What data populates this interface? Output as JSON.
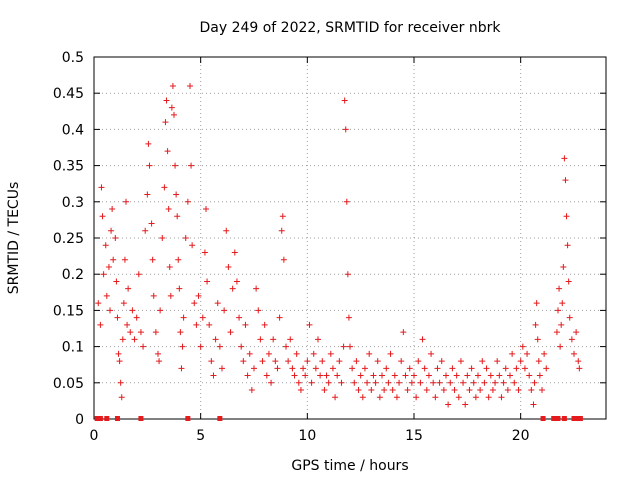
{
  "chart_data": {
    "type": "scatter",
    "title": "Day 249 of 2022, SRMTID for receiver nbrk",
    "xlabel": "GPS time / hours",
    "ylabel": "SRMTID / TECUs",
    "xlim": [
      0,
      24
    ],
    "ylim": [
      0,
      0.5
    ],
    "xticks": [
      0,
      5,
      10,
      15,
      20
    ],
    "yticks": [
      0,
      0.05,
      0.1,
      0.15,
      0.2,
      0.25,
      0.3,
      0.35,
      0.4,
      0.45,
      0.5
    ],
    "grid": true,
    "marker": "+",
    "color": "#e41a1c",
    "series": [
      {
        "name": "nbrk",
        "points": [
          [
            0.2,
            0.16
          ],
          [
            0.3,
            0.13
          ],
          [
            0.35,
            0.32
          ],
          [
            0.4,
            0.28
          ],
          [
            0.45,
            0.2
          ],
          [
            0.55,
            0.24
          ],
          [
            0.6,
            0.17
          ],
          [
            0.7,
            0.21
          ],
          [
            0.75,
            0.15
          ],
          [
            0.8,
            0.26
          ],
          [
            0.85,
            0.29
          ],
          [
            0.9,
            0.22
          ],
          [
            1.0,
            0.25
          ],
          [
            1.05,
            0.19
          ],
          [
            1.1,
            0.14
          ],
          [
            1.15,
            0.09
          ],
          [
            1.2,
            0.08
          ],
          [
            1.25,
            0.05
          ],
          [
            1.3,
            0.03
          ],
          [
            1.35,
            0.11
          ],
          [
            1.4,
            0.16
          ],
          [
            1.45,
            0.22
          ],
          [
            1.5,
            0.3
          ],
          [
            1.55,
            0.13
          ],
          [
            1.6,
            0.18
          ],
          [
            1.7,
            0.12
          ],
          [
            1.8,
            0.15
          ],
          [
            1.9,
            0.11
          ],
          [
            2.0,
            0.14
          ],
          [
            2.1,
            0.2
          ],
          [
            2.2,
            0.12
          ],
          [
            2.3,
            0.1
          ],
          [
            2.4,
            0.26
          ],
          [
            2.5,
            0.31
          ],
          [
            2.55,
            0.38
          ],
          [
            2.6,
            0.35
          ],
          [
            2.7,
            0.27
          ],
          [
            2.75,
            0.22
          ],
          [
            2.8,
            0.17
          ],
          [
            2.9,
            0.12
          ],
          [
            3.0,
            0.09
          ],
          [
            3.05,
            0.08
          ],
          [
            3.1,
            0.15
          ],
          [
            3.2,
            0.25
          ],
          [
            3.3,
            0.32
          ],
          [
            3.35,
            0.41
          ],
          [
            3.4,
            0.44
          ],
          [
            3.45,
            0.37
          ],
          [
            3.5,
            0.29
          ],
          [
            3.55,
            0.21
          ],
          [
            3.6,
            0.17
          ],
          [
            3.65,
            0.43
          ],
          [
            3.7,
            0.46
          ],
          [
            3.75,
            0.42
          ],
          [
            3.8,
            0.35
          ],
          [
            3.85,
            0.31
          ],
          [
            3.9,
            0.28
          ],
          [
            3.95,
            0.22
          ],
          [
            4.0,
            0.18
          ],
          [
            4.05,
            0.12
          ],
          [
            4.1,
            0.07
          ],
          [
            4.15,
            0.1
          ],
          [
            4.2,
            0.14
          ],
          [
            4.3,
            0.25
          ],
          [
            4.4,
            0.3
          ],
          [
            4.5,
            0.46
          ],
          [
            4.55,
            0.35
          ],
          [
            4.6,
            0.24
          ],
          [
            4.7,
            0.16
          ],
          [
            4.8,
            0.13
          ],
          [
            4.9,
            0.17
          ],
          [
            5.0,
            0.1
          ],
          [
            5.1,
            0.14
          ],
          [
            5.2,
            0.23
          ],
          [
            5.25,
            0.29
          ],
          [
            5.3,
            0.19
          ],
          [
            5.4,
            0.13
          ],
          [
            5.5,
            0.08
          ],
          [
            5.6,
            0.06
          ],
          [
            5.7,
            0.11
          ],
          [
            5.8,
            0.16
          ],
          [
            5.9,
            0.1
          ],
          [
            6.0,
            0.07
          ],
          [
            6.1,
            0.15
          ],
          [
            6.2,
            0.26
          ],
          [
            6.3,
            0.21
          ],
          [
            6.4,
            0.12
          ],
          [
            6.5,
            0.18
          ],
          [
            6.6,
            0.23
          ],
          [
            6.7,
            0.19
          ],
          [
            6.8,
            0.14
          ],
          [
            6.9,
            0.1
          ],
          [
            7.0,
            0.08
          ],
          [
            7.1,
            0.13
          ],
          [
            7.2,
            0.06
          ],
          [
            7.3,
            0.09
          ],
          [
            7.4,
            0.04
          ],
          [
            7.5,
            0.07
          ],
          [
            7.6,
            0.18
          ],
          [
            7.7,
            0.15
          ],
          [
            7.8,
            0.11
          ],
          [
            7.9,
            0.08
          ],
          [
            8.0,
            0.13
          ],
          [
            8.1,
            0.06
          ],
          [
            8.2,
            0.09
          ],
          [
            8.3,
            0.05
          ],
          [
            8.4,
            0.11
          ],
          [
            8.5,
            0.08
          ],
          [
            8.6,
            0.07
          ],
          [
            8.7,
            0.14
          ],
          [
            8.8,
            0.26
          ],
          [
            8.85,
            0.28
          ],
          [
            8.9,
            0.22
          ],
          [
            9.0,
            0.1
          ],
          [
            9.1,
            0.08
          ],
          [
            9.2,
            0.11
          ],
          [
            9.3,
            0.07
          ],
          [
            9.4,
            0.06
          ],
          [
            9.5,
            0.09
          ],
          [
            9.6,
            0.05
          ],
          [
            9.7,
            0.04
          ],
          [
            9.8,
            0.07
          ],
          [
            9.9,
            0.06
          ],
          [
            10.0,
            0.08
          ],
          [
            10.1,
            0.13
          ],
          [
            10.2,
            0.05
          ],
          [
            10.3,
            0.09
          ],
          [
            10.4,
            0.07
          ],
          [
            10.5,
            0.11
          ],
          [
            10.6,
            0.06
          ],
          [
            10.7,
            0.08
          ],
          [
            10.8,
            0.04
          ],
          [
            10.9,
            0.06
          ],
          [
            11.0,
            0.05
          ],
          [
            11.1,
            0.09
          ],
          [
            11.2,
            0.07
          ],
          [
            11.3,
            0.03
          ],
          [
            11.4,
            0.06
          ],
          [
            11.5,
            0.08
          ],
          [
            11.6,
            0.05
          ],
          [
            11.7,
            0.1
          ],
          [
            11.75,
            0.44
          ],
          [
            11.8,
            0.4
          ],
          [
            11.85,
            0.3
          ],
          [
            11.9,
            0.2
          ],
          [
            11.95,
            0.14
          ],
          [
            12.0,
            0.1
          ],
          [
            12.1,
            0.07
          ],
          [
            12.2,
            0.05
          ],
          [
            12.3,
            0.08
          ],
          [
            12.4,
            0.04
          ],
          [
            12.5,
            0.06
          ],
          [
            12.6,
            0.03
          ],
          [
            12.7,
            0.07
          ],
          [
            12.8,
            0.05
          ],
          [
            12.9,
            0.09
          ],
          [
            13.0,
            0.04
          ],
          [
            13.1,
            0.06
          ],
          [
            13.2,
            0.05
          ],
          [
            13.3,
            0.08
          ],
          [
            13.4,
            0.03
          ],
          [
            13.5,
            0.06
          ],
          [
            13.6,
            0.04
          ],
          [
            13.7,
            0.07
          ],
          [
            13.8,
            0.05
          ],
          [
            13.9,
            0.09
          ],
          [
            14.0,
            0.04
          ],
          [
            14.1,
            0.06
          ],
          [
            14.2,
            0.03
          ],
          [
            14.3,
            0.05
          ],
          [
            14.4,
            0.08
          ],
          [
            14.5,
            0.12
          ],
          [
            14.6,
            0.06
          ],
          [
            14.7,
            0.04
          ],
          [
            14.8,
            0.07
          ],
          [
            14.9,
            0.05
          ],
          [
            15.0,
            0.06
          ],
          [
            15.1,
            0.03
          ],
          [
            15.2,
            0.08
          ],
          [
            15.3,
            0.05
          ],
          [
            15.4,
            0.11
          ],
          [
            15.5,
            0.07
          ],
          [
            15.6,
            0.04
          ],
          [
            15.7,
            0.06
          ],
          [
            15.8,
            0.09
          ],
          [
            15.9,
            0.05
          ],
          [
            16.0,
            0.03
          ],
          [
            16.1,
            0.07
          ],
          [
            16.2,
            0.05
          ],
          [
            16.3,
            0.08
          ],
          [
            16.4,
            0.04
          ],
          [
            16.5,
            0.06
          ],
          [
            16.6,
            0.02
          ],
          [
            16.7,
            0.05
          ],
          [
            16.8,
            0.07
          ],
          [
            16.9,
            0.04
          ],
          [
            17.0,
            0.06
          ],
          [
            17.1,
            0.03
          ],
          [
            17.2,
            0.08
          ],
          [
            17.3,
            0.05
          ],
          [
            17.4,
            0.02
          ],
          [
            17.5,
            0.06
          ],
          [
            17.6,
            0.04
          ],
          [
            17.7,
            0.07
          ],
          [
            17.8,
            0.05
          ],
          [
            17.9,
            0.03
          ],
          [
            18.0,
            0.06
          ],
          [
            18.1,
            0.04
          ],
          [
            18.2,
            0.08
          ],
          [
            18.3,
            0.05
          ],
          [
            18.4,
            0.07
          ],
          [
            18.5,
            0.03
          ],
          [
            18.6,
            0.06
          ],
          [
            18.7,
            0.04
          ],
          [
            18.8,
            0.05
          ],
          [
            18.9,
            0.08
          ],
          [
            19.0,
            0.06
          ],
          [
            19.1,
            0.03
          ],
          [
            19.2,
            0.05
          ],
          [
            19.3,
            0.07
          ],
          [
            19.4,
            0.04
          ],
          [
            19.5,
            0.06
          ],
          [
            19.6,
            0.09
          ],
          [
            19.7,
            0.05
          ],
          [
            19.8,
            0.07
          ],
          [
            19.9,
            0.04
          ],
          [
            20.0,
            0.08
          ],
          [
            20.1,
            0.1
          ],
          [
            20.2,
            0.07
          ],
          [
            20.3,
            0.09
          ],
          [
            20.4,
            0.06
          ],
          [
            20.5,
            0.04
          ],
          [
            20.6,
            0.02
          ],
          [
            20.65,
            0.05
          ],
          [
            20.7,
            0.13
          ],
          [
            20.75,
            0.16
          ],
          [
            20.8,
            0.11
          ],
          [
            20.85,
            0.08
          ],
          [
            20.9,
            0.06
          ],
          [
            21.0,
            0.04
          ],
          [
            21.1,
            0.09
          ],
          [
            21.2,
            0.07
          ],
          [
            21.7,
            0.12
          ],
          [
            21.75,
            0.15
          ],
          [
            21.8,
            0.18
          ],
          [
            21.85,
            0.1
          ],
          [
            21.9,
            0.13
          ],
          [
            21.95,
            0.16
          ],
          [
            22.0,
            0.21
          ],
          [
            22.05,
            0.36
          ],
          [
            22.1,
            0.33
          ],
          [
            22.15,
            0.28
          ],
          [
            22.2,
            0.24
          ],
          [
            22.25,
            0.19
          ],
          [
            22.3,
            0.14
          ],
          [
            22.4,
            0.11
          ],
          [
            22.5,
            0.09
          ],
          [
            22.6,
            0.12
          ],
          [
            22.7,
            0.08
          ],
          [
            22.75,
            0.07
          ]
        ]
      }
    ],
    "zero_points": [
      0.15,
      0.3,
      0.6,
      1.1,
      2.2,
      4.4,
      5.9,
      21.05,
      21.55,
      21.75,
      22.05,
      22.5,
      22.65,
      22.8
    ]
  }
}
